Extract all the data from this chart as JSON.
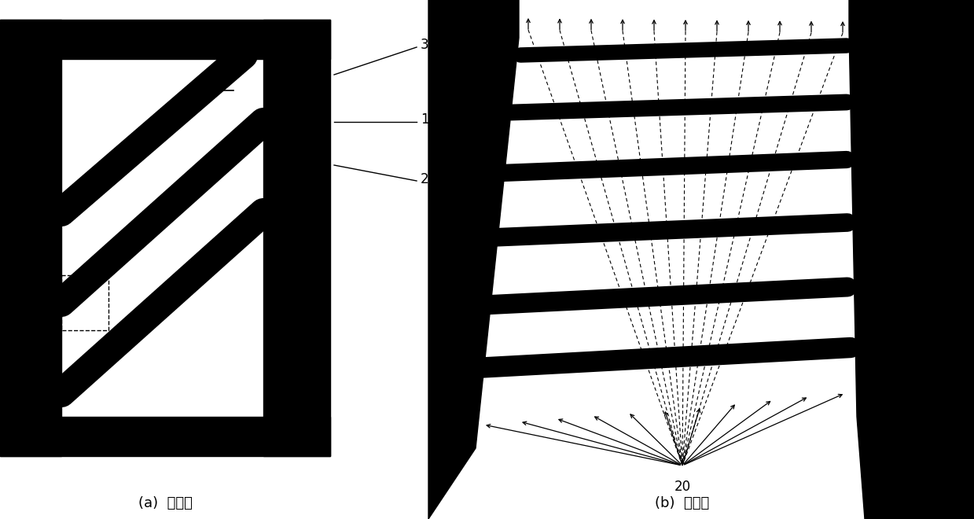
{
  "bg_color": "#ffffff",
  "black_color": "#000000",
  "fig_width": 12.39,
  "fig_height": 6.6,
  "dpi": 100,
  "label_a": "(a)  俦视图",
  "label_b": "(b)  正视图",
  "label_1": "1",
  "label_2": "2",
  "label_3": "3",
  "label_20": "20",
  "font_size_caption": 13,
  "font_size_num": 12
}
